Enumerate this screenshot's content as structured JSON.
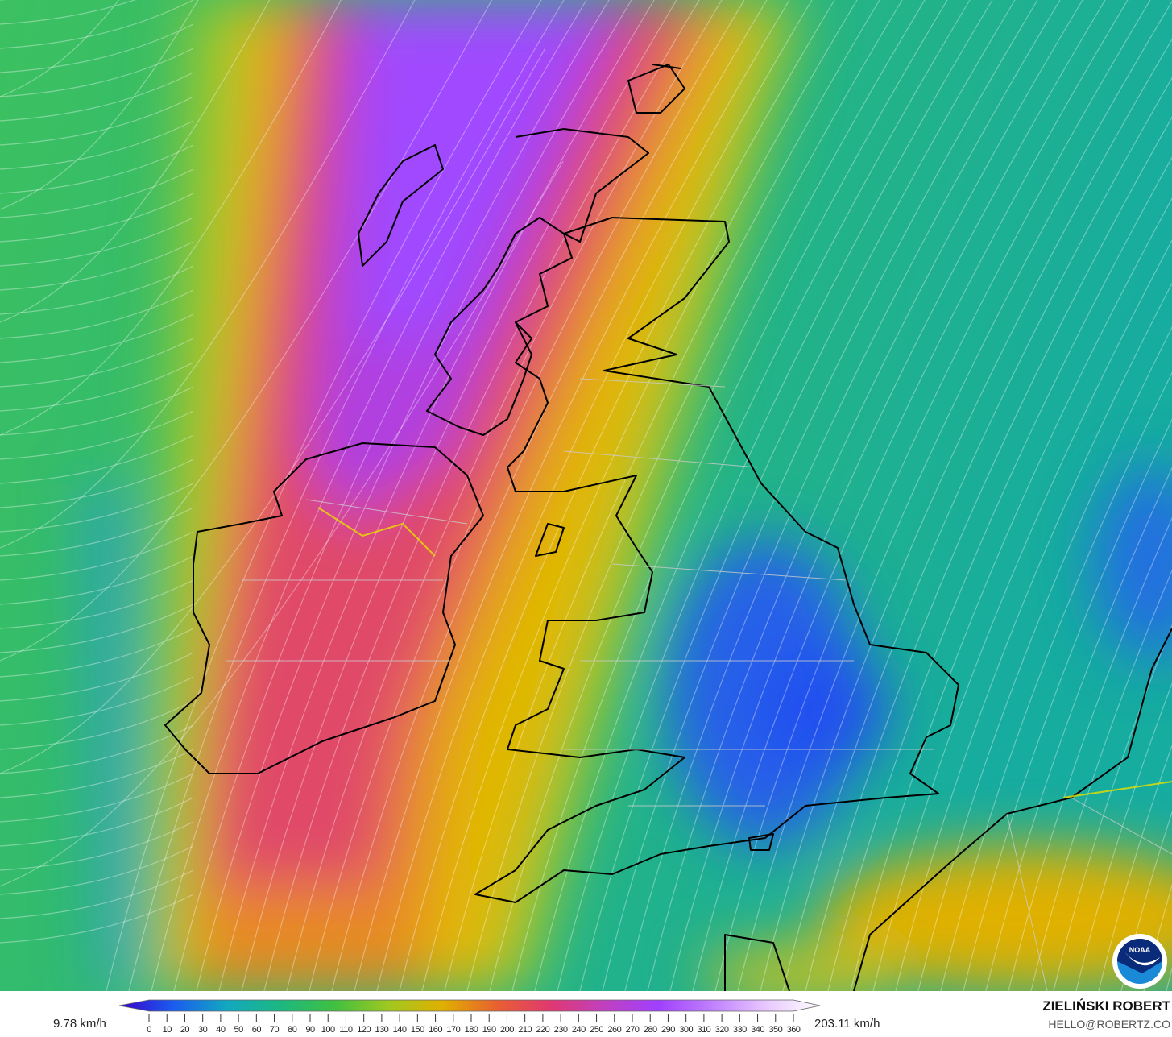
{
  "legend": {
    "min_label": "9.78 km/h",
    "max_label": "203.11 km/h",
    "ticks": [
      "0",
      "10",
      "20",
      "30",
      "40",
      "50",
      "60",
      "70",
      "80",
      "90",
      "100",
      "110",
      "120",
      "130",
      "140",
      "150",
      "160",
      "170",
      "180",
      "190",
      "200",
      "210",
      "220",
      "230",
      "240",
      "250",
      "260",
      "270",
      "280",
      "290",
      "300",
      "310",
      "320",
      "330",
      "340",
      "350",
      "360"
    ],
    "colors": [
      "#3a00c8",
      "#1a5cf0",
      "#12a8c0",
      "#1cb880",
      "#40c040",
      "#a0c820",
      "#e0b000",
      "#e86030",
      "#e03870",
      "#c040c0",
      "#a040ff",
      "#c080ff",
      "#e8c8ff",
      "#ffffff"
    ]
  },
  "credits": {
    "author": "ZIELIŃSKI ROBERT",
    "email": "HELLO@ROBERTZ.CO"
  },
  "logo": {
    "text": "NOAA"
  }
}
